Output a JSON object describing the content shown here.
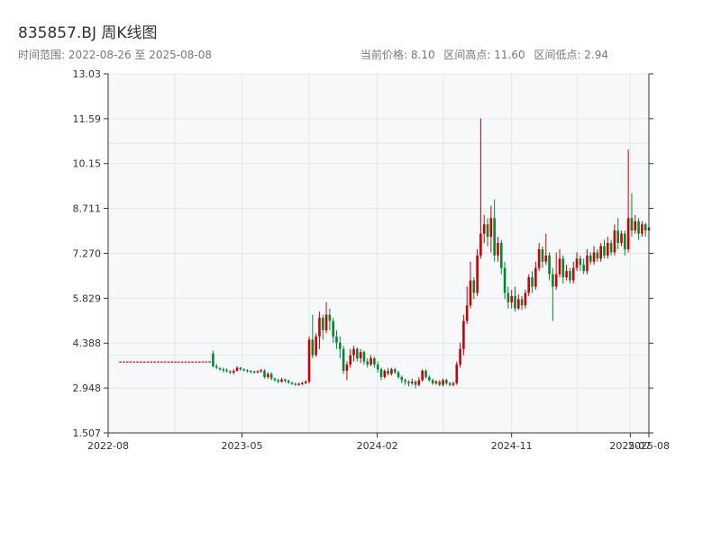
{
  "header": {
    "title": "835857.BJ 周K线图",
    "subtitle": "时间范围: 2022-08-26 至 2025-08-08",
    "current_price": "当前价格: 8.10",
    "range_high": "区间高点: 11.60",
    "range_low": "区间低点: 2.94"
  },
  "colors": {
    "up": "#cc0000",
    "down": "#008833",
    "axis": "#333333",
    "grid": "#e3e6ea",
    "plot_bg": "#f7f8fa"
  },
  "chart_data": {
    "type": "candlestick",
    "ylim": [
      1.507,
      13.03
    ],
    "y_ticks": [
      "1.507",
      "2.948",
      "4.388",
      "5.829",
      "7.270",
      "8.711",
      "10.15",
      "11.59",
      "13.03"
    ],
    "x_range": [
      "2022-08-26",
      "2025-08-08"
    ],
    "x_ticks": [
      {
        "date": "2022-08-01",
        "label": "2022-08"
      },
      {
        "date": "2023-05-01",
        "label": "2023-05"
      },
      {
        "date": "2024-02-01",
        "label": "2024-02"
      },
      {
        "date": "2024-11-01",
        "label": "2024-11"
      },
      {
        "date": "2025-07-01",
        "label": "2025-07"
      },
      {
        "date": "2025-08-08",
        "label": "2025-08"
      }
    ],
    "candles": [
      [
        "2022-08-26",
        3.8,
        3.8,
        3.8,
        3.8
      ],
      [
        "2022-09-02",
        3.8,
        3.8,
        3.8,
        3.8
      ],
      [
        "2022-09-09",
        3.8,
        3.8,
        3.8,
        3.8
      ],
      [
        "2022-09-16",
        3.8,
        3.8,
        3.8,
        3.8
      ],
      [
        "2022-09-23",
        3.8,
        3.8,
        3.8,
        3.8
      ],
      [
        "2022-09-30",
        3.8,
        3.8,
        3.8,
        3.8
      ],
      [
        "2022-10-07",
        3.8,
        3.8,
        3.8,
        3.8
      ],
      [
        "2022-10-14",
        3.8,
        3.8,
        3.8,
        3.8
      ],
      [
        "2022-10-21",
        3.8,
        3.8,
        3.8,
        3.8
      ],
      [
        "2022-10-28",
        3.8,
        3.8,
        3.8,
        3.8
      ],
      [
        "2022-11-04",
        3.8,
        3.8,
        3.8,
        3.8
      ],
      [
        "2022-11-11",
        3.8,
        3.8,
        3.8,
        3.8
      ],
      [
        "2022-11-18",
        3.8,
        3.8,
        3.8,
        3.8
      ],
      [
        "2022-11-25",
        3.8,
        3.8,
        3.8,
        3.8
      ],
      [
        "2022-12-02",
        3.8,
        3.8,
        3.8,
        3.8
      ],
      [
        "2022-12-09",
        3.8,
        3.8,
        3.8,
        3.8
      ],
      [
        "2022-12-16",
        3.8,
        3.8,
        3.8,
        3.8
      ],
      [
        "2022-12-23",
        3.8,
        3.8,
        3.8,
        3.8
      ],
      [
        "2022-12-30",
        3.8,
        3.8,
        3.8,
        3.8
      ],
      [
        "2023-01-06",
        3.8,
        3.8,
        3.8,
        3.8
      ],
      [
        "2023-01-13",
        3.8,
        3.8,
        3.8,
        3.8
      ],
      [
        "2023-01-20",
        3.8,
        3.8,
        3.8,
        3.8
      ],
      [
        "2023-01-27",
        3.8,
        3.8,
        3.8,
        3.8
      ],
      [
        "2023-02-03",
        3.8,
        3.8,
        3.8,
        3.8
      ],
      [
        "2023-02-10",
        3.8,
        3.8,
        3.8,
        3.8
      ],
      [
        "2023-02-17",
        3.8,
        3.8,
        3.8,
        3.8
      ],
      [
        "2023-02-24",
        3.8,
        3.8,
        3.8,
        3.8
      ],
      [
        "2023-03-03",
        4.05,
        3.65,
        4.15,
        3.6
      ],
      [
        "2023-03-10",
        3.65,
        3.6,
        3.72,
        3.55
      ],
      [
        "2023-03-17",
        3.58,
        3.55,
        3.62,
        3.5
      ],
      [
        "2023-03-24",
        3.55,
        3.52,
        3.6,
        3.45
      ],
      [
        "2023-03-31",
        3.52,
        3.5,
        3.58,
        3.45
      ],
      [
        "2023-04-07",
        3.48,
        3.45,
        3.52,
        3.4
      ],
      [
        "2023-04-14",
        3.45,
        3.5,
        3.55,
        3.38
      ],
      [
        "2023-04-21",
        3.5,
        3.6,
        3.65,
        3.48
      ],
      [
        "2023-04-28",
        3.6,
        3.55,
        3.62,
        3.5
      ],
      [
        "2023-05-05",
        3.55,
        3.52,
        3.58,
        3.48
      ],
      [
        "2023-05-12",
        3.52,
        3.5,
        3.55,
        3.45
      ],
      [
        "2023-05-19",
        3.5,
        3.48,
        3.52,
        3.42
      ],
      [
        "2023-05-26",
        3.48,
        3.45,
        3.5,
        3.4
      ],
      [
        "2023-06-02",
        3.45,
        3.48,
        3.52,
        3.42
      ],
      [
        "2023-06-09",
        3.48,
        3.52,
        3.56,
        3.45
      ],
      [
        "2023-06-16",
        3.5,
        3.3,
        3.55,
        3.25
      ],
      [
        "2023-06-23",
        3.3,
        3.4,
        3.45,
        3.25
      ],
      [
        "2023-06-30",
        3.4,
        3.25,
        3.45,
        3.2
      ],
      [
        "2023-07-07",
        3.25,
        3.2,
        3.28,
        3.15
      ],
      [
        "2023-07-14",
        3.2,
        3.15,
        3.25,
        3.1
      ],
      [
        "2023-07-21",
        3.15,
        3.22,
        3.28,
        3.12
      ],
      [
        "2023-07-28",
        3.22,
        3.18,
        3.25,
        3.12
      ],
      [
        "2023-08-04",
        3.18,
        3.12,
        3.22,
        3.08
      ],
      [
        "2023-08-11",
        3.12,
        3.08,
        3.15,
        3.05
      ],
      [
        "2023-08-18",
        3.08,
        3.05,
        3.12,
        3.02
      ],
      [
        "2023-08-25",
        3.05,
        3.08,
        3.12,
        3.02
      ],
      [
        "2023-09-01",
        3.08,
        3.1,
        3.15,
        3.05
      ],
      [
        "2023-09-08",
        3.1,
        3.15,
        3.2,
        3.08
      ],
      [
        "2023-09-15",
        3.15,
        4.5,
        4.6,
        3.1
      ],
      [
        "2023-09-22",
        4.5,
        4.0,
        5.3,
        3.9
      ],
      [
        "2023-09-29",
        4.0,
        4.6,
        4.7,
        3.95
      ],
      [
        "2023-10-06",
        4.6,
        5.2,
        5.4,
        4.2
      ],
      [
        "2023-10-13",
        5.2,
        4.8,
        5.3,
        4.5
      ],
      [
        "2023-10-20",
        4.8,
        5.3,
        5.7,
        4.7
      ],
      [
        "2023-10-27",
        5.3,
        5.1,
        5.5,
        4.8
      ],
      [
        "2023-11-03",
        5.1,
        4.6,
        5.2,
        4.4
      ],
      [
        "2023-11-10",
        4.6,
        4.4,
        4.8,
        4.2
      ],
      [
        "2023-11-17",
        4.4,
        4.2,
        4.6,
        3.9
      ],
      [
        "2023-11-24",
        4.2,
        3.5,
        4.3,
        3.4
      ],
      [
        "2023-12-01",
        3.5,
        3.7,
        3.8,
        3.2
      ],
      [
        "2023-12-08",
        3.7,
        4.0,
        4.2,
        3.6
      ],
      [
        "2023-12-15",
        4.0,
        4.2,
        4.3,
        3.8
      ],
      [
        "2023-12-22",
        4.2,
        3.9,
        4.25,
        3.8
      ],
      [
        "2023-12-29",
        3.9,
        4.1,
        4.2,
        3.75
      ],
      [
        "2024-01-05",
        4.1,
        3.8,
        4.15,
        3.7
      ],
      [
        "2024-01-12",
        3.8,
        3.7,
        3.9,
        3.6
      ],
      [
        "2024-01-19",
        3.7,
        3.9,
        4.0,
        3.65
      ],
      [
        "2024-01-26",
        3.9,
        3.7,
        3.95,
        3.6
      ],
      [
        "2024-02-02",
        3.7,
        3.55,
        3.8,
        3.45
      ],
      [
        "2024-02-09",
        3.55,
        3.3,
        3.6,
        3.2
      ],
      [
        "2024-02-16",
        3.3,
        3.5,
        3.55,
        3.25
      ],
      [
        "2024-02-23",
        3.5,
        3.4,
        3.6,
        3.35
      ],
      [
        "2024-03-01",
        3.4,
        3.55,
        3.6,
        3.35
      ],
      [
        "2024-03-08",
        3.55,
        3.45,
        3.6,
        3.4
      ],
      [
        "2024-03-15",
        3.45,
        3.3,
        3.5,
        3.25
      ],
      [
        "2024-03-22",
        3.3,
        3.2,
        3.35,
        3.1
      ],
      [
        "2024-03-29",
        3.2,
        3.15,
        3.25,
        3.05
      ],
      [
        "2024-04-05",
        3.15,
        3.1,
        3.2,
        3.0
      ],
      [
        "2024-04-12",
        3.1,
        3.15,
        3.25,
        3.05
      ],
      [
        "2024-04-19",
        3.15,
        3.05,
        3.2,
        2.94
      ],
      [
        "2024-04-26",
        3.05,
        3.2,
        3.3,
        3.0
      ],
      [
        "2024-05-03",
        3.2,
        3.5,
        3.55,
        3.15
      ],
      [
        "2024-05-10",
        3.5,
        3.3,
        3.55,
        3.25
      ],
      [
        "2024-05-17",
        3.3,
        3.2,
        3.35,
        3.15
      ],
      [
        "2024-05-24",
        3.2,
        3.1,
        3.25,
        3.05
      ],
      [
        "2024-05-31",
        3.1,
        3.15,
        3.2,
        3.05
      ],
      [
        "2024-06-07",
        3.15,
        3.05,
        3.2,
        3.0
      ],
      [
        "2024-06-14",
        3.05,
        3.2,
        3.25,
        3.0
      ],
      [
        "2024-06-21",
        3.2,
        3.1,
        3.25,
        3.05
      ],
      [
        "2024-06-28",
        3.1,
        3.05,
        3.15,
        3.0
      ],
      [
        "2024-07-05",
        3.05,
        3.1,
        3.15,
        3.0
      ],
      [
        "2024-07-12",
        3.1,
        3.7,
        3.8,
        3.05
      ],
      [
        "2024-07-19",
        3.7,
        4.2,
        4.4,
        3.6
      ],
      [
        "2024-07-26",
        4.2,
        5.1,
        5.3,
        4.0
      ],
      [
        "2024-08-02",
        5.1,
        5.6,
        6.2,
        5.0
      ],
      [
        "2024-08-09",
        5.6,
        6.4,
        7.0,
        5.5
      ],
      [
        "2024-08-16",
        6.4,
        6.0,
        6.5,
        5.8
      ],
      [
        "2024-08-23",
        6.0,
        7.2,
        7.4,
        5.9
      ],
      [
        "2024-08-30",
        7.2,
        7.9,
        11.6,
        7.1
      ],
      [
        "2024-09-06",
        7.9,
        8.2,
        8.5,
        7.6
      ],
      [
        "2024-09-13",
        8.2,
        7.8,
        8.4,
        7.5
      ],
      [
        "2024-09-20",
        7.8,
        8.4,
        8.8,
        7.3
      ],
      [
        "2024-09-27",
        8.4,
        7.2,
        9.0,
        7.0
      ],
      [
        "2024-10-04",
        7.2,
        7.6,
        7.8,
        7.0
      ],
      [
        "2024-10-11",
        7.6,
        6.8,
        7.7,
        6.6
      ],
      [
        "2024-10-18",
        6.8,
        6.0,
        7.0,
        5.8
      ],
      [
        "2024-10-25",
        6.0,
        5.7,
        6.2,
        5.5
      ],
      [
        "2024-11-01",
        5.7,
        5.9,
        6.1,
        5.5
      ],
      [
        "2024-11-08",
        5.9,
        5.5,
        6.2,
        5.4
      ],
      [
        "2024-11-15",
        5.5,
        5.8,
        5.95,
        5.45
      ],
      [
        "2024-11-22",
        5.8,
        5.6,
        5.9,
        5.45
      ],
      [
        "2024-11-29",
        5.6,
        6.0,
        6.1,
        5.5
      ],
      [
        "2024-12-06",
        6.0,
        6.5,
        6.6,
        5.9
      ],
      [
        "2024-12-13",
        6.5,
        6.2,
        6.7,
        6.0
      ],
      [
        "2024-12-20",
        6.2,
        6.8,
        7.0,
        6.1
      ],
      [
        "2024-12-27",
        6.8,
        7.4,
        7.6,
        6.7
      ],
      [
        "2025-01-03",
        7.4,
        7.0,
        7.5,
        6.8
      ],
      [
        "2025-01-10",
        7.0,
        7.2,
        7.9,
        6.9
      ],
      [
        "2025-01-17",
        7.2,
        6.6,
        7.3,
        6.4
      ],
      [
        "2025-01-24",
        6.6,
        6.2,
        6.8,
        5.1
      ],
      [
        "2025-01-31",
        6.2,
        6.6,
        7.3,
        6.1
      ],
      [
        "2025-02-07",
        6.6,
        7.1,
        7.4,
        6.5
      ],
      [
        "2025-02-14",
        7.1,
        6.5,
        7.2,
        6.3
      ],
      [
        "2025-02-21",
        6.5,
        6.7,
        6.9,
        6.4
      ],
      [
        "2025-02-28",
        6.7,
        6.4,
        6.8,
        6.3
      ],
      [
        "2025-03-07",
        6.4,
        6.8,
        7.0,
        6.3
      ],
      [
        "2025-03-14",
        6.8,
        7.1,
        7.3,
        6.7
      ],
      [
        "2025-03-21",
        7.1,
        6.9,
        7.2,
        6.7
      ],
      [
        "2025-03-28",
        6.9,
        6.7,
        7.1,
        6.6
      ],
      [
        "2025-04-04",
        6.7,
        7.2,
        7.4,
        6.6
      ],
      [
        "2025-04-11",
        7.2,
        7.0,
        7.3,
        6.9
      ],
      [
        "2025-04-18",
        7.0,
        7.3,
        7.5,
        6.9
      ],
      [
        "2025-04-25",
        7.3,
        7.1,
        7.4,
        7.0
      ],
      [
        "2025-05-02",
        7.1,
        7.5,
        7.6,
        7.0
      ],
      [
        "2025-05-09",
        7.5,
        7.2,
        7.7,
        7.1
      ],
      [
        "2025-05-16",
        7.2,
        7.6,
        7.8,
        7.1
      ],
      [
        "2025-05-23",
        7.6,
        7.3,
        7.7,
        7.2
      ],
      [
        "2025-05-30",
        7.3,
        8.0,
        8.2,
        7.2
      ],
      [
        "2025-06-06",
        8.0,
        7.6,
        8.4,
        7.4
      ],
      [
        "2025-06-13",
        7.6,
        7.9,
        8.0,
        7.5
      ],
      [
        "2025-06-20",
        7.9,
        7.4,
        8.0,
        7.2
      ],
      [
        "2025-06-27",
        7.4,
        8.4,
        10.6,
        7.3
      ],
      [
        "2025-07-04",
        8.4,
        8.0,
        9.2,
        7.8
      ],
      [
        "2025-07-11",
        8.0,
        8.3,
        8.5,
        7.9
      ],
      [
        "2025-07-18",
        8.3,
        7.9,
        8.4,
        7.7
      ],
      [
        "2025-07-25",
        7.9,
        8.2,
        8.3,
        7.8
      ],
      [
        "2025-08-01",
        8.2,
        8.0,
        8.25,
        7.8
      ],
      [
        "2025-08-08",
        8.0,
        8.1,
        8.2,
        7.85
      ]
    ]
  }
}
